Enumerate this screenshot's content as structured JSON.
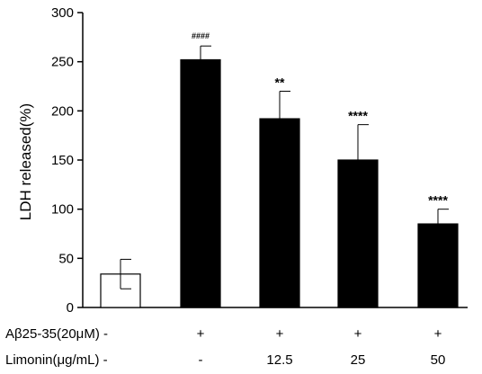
{
  "chart_data": {
    "type": "bar",
    "ylabel": "LDH released(%)",
    "ylim": [
      0,
      300
    ],
    "yticks": [
      0,
      50,
      100,
      150,
      200,
      250,
      300
    ],
    "ytick_labels": [
      "0",
      "50",
      "100",
      "150",
      "200",
      "250",
      "300"
    ],
    "bars": [
      {
        "value": 34,
        "error": 15,
        "fill": "#ffffff",
        "significance": ""
      },
      {
        "value": 252,
        "error": 14,
        "fill": "#000000",
        "significance": "####"
      },
      {
        "value": 192,
        "error": 28,
        "fill": "#000000",
        "significance": "**"
      },
      {
        "value": 150,
        "error": 36,
        "fill": "#000000",
        "significance": "****"
      },
      {
        "value": 85,
        "error": 15,
        "fill": "#000000",
        "significance": "****"
      }
    ],
    "conditions": [
      {
        "label": "Aβ25-35(20μM) -",
        "values": [
          "+",
          "+",
          "+",
          "+"
        ]
      },
      {
        "label": "Limonin(μg/mL) -",
        "values": [
          "-",
          "12.5",
          "25",
          "50"
        ]
      }
    ],
    "grid": false,
    "legend": "none"
  }
}
